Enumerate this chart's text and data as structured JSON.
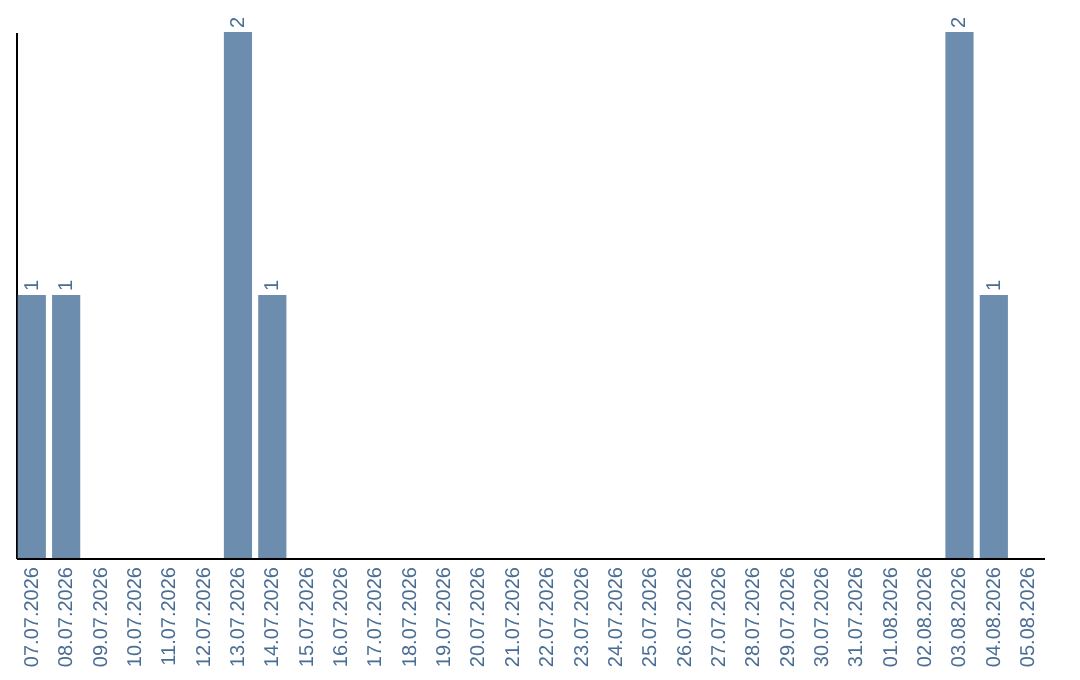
{
  "chart_data": {
    "type": "bar",
    "categories": [
      "07.07.2026",
      "08.07.2026",
      "09.07.2026",
      "10.07.2026",
      "11.07.2026",
      "12.07.2026",
      "13.07.2026",
      "14.07.2026",
      "15.07.2026",
      "16.07.2026",
      "17.07.2026",
      "18.07.2026",
      "19.07.2026",
      "20.07.2026",
      "21.07.2026",
      "22.07.2026",
      "23.07.2026",
      "24.07.2026",
      "25.07.2026",
      "26.07.2026",
      "27.07.2026",
      "28.07.2026",
      "29.07.2026",
      "30.07.2026",
      "31.07.2026",
      "01.08.2026",
      "02.08.2026",
      "03.08.2026",
      "04.08.2026",
      "05.08.2026"
    ],
    "values": [
      1,
      1,
      0,
      0,
      0,
      0,
      2,
      1,
      0,
      0,
      0,
      0,
      0,
      0,
      0,
      0,
      0,
      0,
      0,
      0,
      0,
      0,
      0,
      0,
      0,
      0,
      0,
      2,
      1,
      0
    ],
    "value_labels": [
      "1",
      "1",
      null,
      null,
      null,
      null,
      "2",
      "1",
      null,
      null,
      null,
      null,
      null,
      null,
      null,
      null,
      null,
      null,
      null,
      null,
      null,
      null,
      null,
      null,
      null,
      null,
      null,
      "2",
      "1",
      null
    ],
    "color": "#6d8dae",
    "tick_labels": "x"
  }
}
